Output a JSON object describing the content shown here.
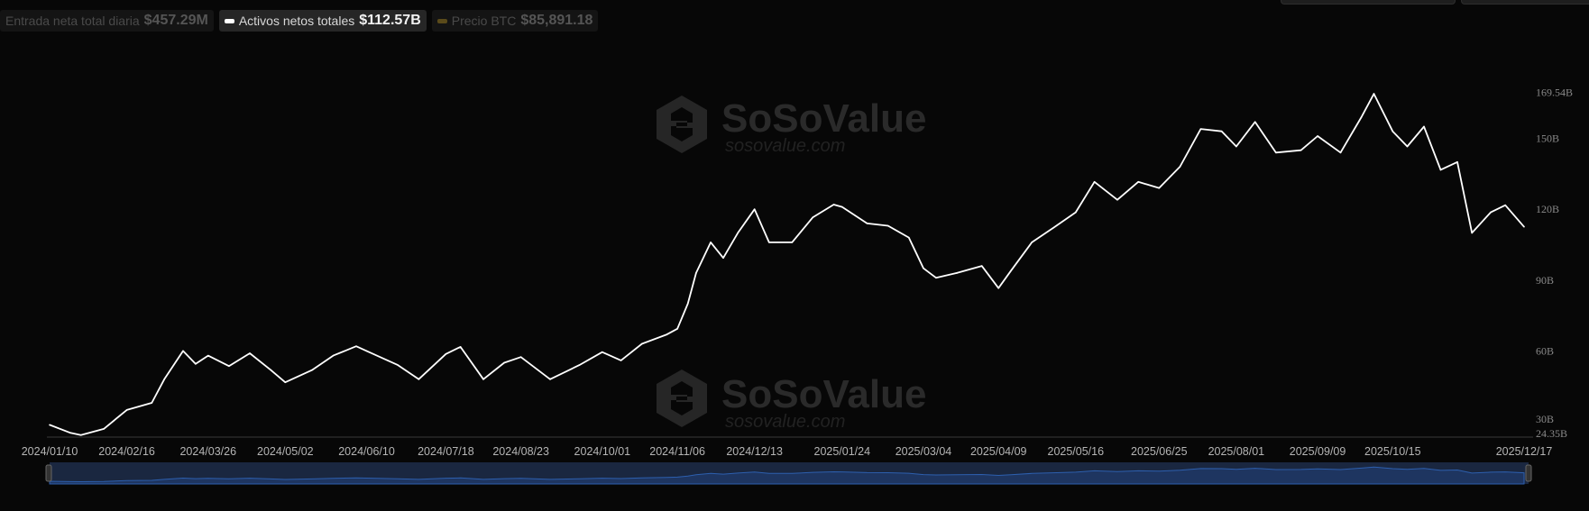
{
  "legend": {
    "items": [
      {
        "label": "Entrada neta total diaria",
        "value": "$457.29M",
        "active": false,
        "color": ""
      },
      {
        "label": "Activos netos totales",
        "value": "$112.57B",
        "active": true,
        "color": "#ffffff"
      },
      {
        "label": "Precio BTC",
        "value": "$85,891.18",
        "active": false,
        "color": "#5a4a1a"
      }
    ]
  },
  "watermark": {
    "brand": "SoSoValue",
    "url": "sosovalue.com"
  },
  "colors": {
    "line": "#ffffff",
    "background": "#070707",
    "navigator_fill": "#1e3560",
    "navigator_line": "#2d5fae"
  },
  "chart_data": {
    "type": "line",
    "series": [
      {
        "name": "Activos netos totales",
        "x": [
          "2024/01/10",
          "2024/01/20",
          "2024/01/25",
          "2024/02/05",
          "2024/02/16",
          "2024/02/28",
          "2024/03/05",
          "2024/03/14",
          "2024/03/20",
          "2024/03/26",
          "2024/04/05",
          "2024/04/15",
          "2024/04/25",
          "2024/05/02",
          "2024/05/15",
          "2024/05/25",
          "2024/06/05",
          "2024/06/10",
          "2024/06/25",
          "2024/07/05",
          "2024/07/18",
          "2024/07/25",
          "2024/08/05",
          "2024/08/15",
          "2024/08/23",
          "2024/09/06",
          "2024/09/20",
          "2024/10/01",
          "2024/10/10",
          "2024/10/20",
          "2024/11/01",
          "2024/11/06",
          "2024/11/11",
          "2024/11/15",
          "2024/11/22",
          "2024/11/28",
          "2024/12/05",
          "2024/12/13",
          "2024/12/20",
          "2024/12/31",
          "2025/01/10",
          "2025/01/20",
          "2025/01/24",
          "2025/02/05",
          "2025/02/15",
          "2025/02/25",
          "2025/03/04",
          "2025/03/10",
          "2025/03/20",
          "2025/04/01",
          "2025/04/09",
          "2025/04/15",
          "2025/04/25",
          "2025/05/05",
          "2025/05/16",
          "2025/05/25",
          "2025/06/05",
          "2025/06/15",
          "2025/06/25",
          "2025/07/05",
          "2025/07/15",
          "2025/07/25",
          "2025/08/01",
          "2025/08/10",
          "2025/08/20",
          "2025/09/01",
          "2025/09/09",
          "2025/09/20",
          "2025/09/30",
          "2025/10/06",
          "2025/10/15",
          "2025/10/22",
          "2025/10/30",
          "2025/11/07",
          "2025/11/15",
          "2025/11/22",
          "2025/12/01",
          "2025/12/08",
          "2025/12/17"
        ],
        "values": [
          28.7,
          25.3,
          24.4,
          27,
          35,
          38,
          48,
          60,
          54.5,
          58,
          53.6,
          59,
          52,
          46.7,
          52,
          58,
          62,
          60,
          54,
          48,
          58.7,
          61.7,
          48,
          55,
          57.4,
          48,
          54,
          59.5,
          56,
          63,
          67,
          69.4,
          80,
          93,
          106,
          99.4,
          110,
          120,
          106,
          106,
          116.6,
          122,
          121,
          114,
          113,
          108,
          95,
          91,
          93,
          96,
          86.6,
          94,
          106,
          112,
          118.7,
          131.6,
          124,
          131.6,
          129,
          138,
          154,
          153,
          146.6,
          157,
          144,
          145,
          151,
          144,
          159,
          168.9,
          153,
          146.6,
          155,
          136.7,
          140,
          110,
          118.7,
          121.7,
          112.57
        ]
      }
    ],
    "x_ticks": [
      "2024/01/10",
      "2024/02/16",
      "2024/03/26",
      "2024/05/02",
      "2024/06/10",
      "2024/07/18",
      "2024/08/23",
      "2024/10/01",
      "2024/11/06",
      "2024/12/13",
      "2025/01/24",
      "2025/03/04",
      "2025/04/09",
      "2025/05/16",
      "2025/06/25",
      "2025/08/01",
      "2025/09/09",
      "2025/10/15",
      "2025/12/17"
    ],
    "y_ticks": [
      "169.54B",
      "150B",
      "120B",
      "90B",
      "60B",
      "30B",
      "24.35B"
    ],
    "y_tick_values": [
      169.54,
      150,
      120,
      90,
      60,
      30,
      24.35
    ],
    "ylim": [
      24.35,
      169.54
    ],
    "y_unit": "B",
    "grid": false,
    "legend_position": "top-left",
    "xlabel": "",
    "ylabel": "",
    "title": ""
  }
}
